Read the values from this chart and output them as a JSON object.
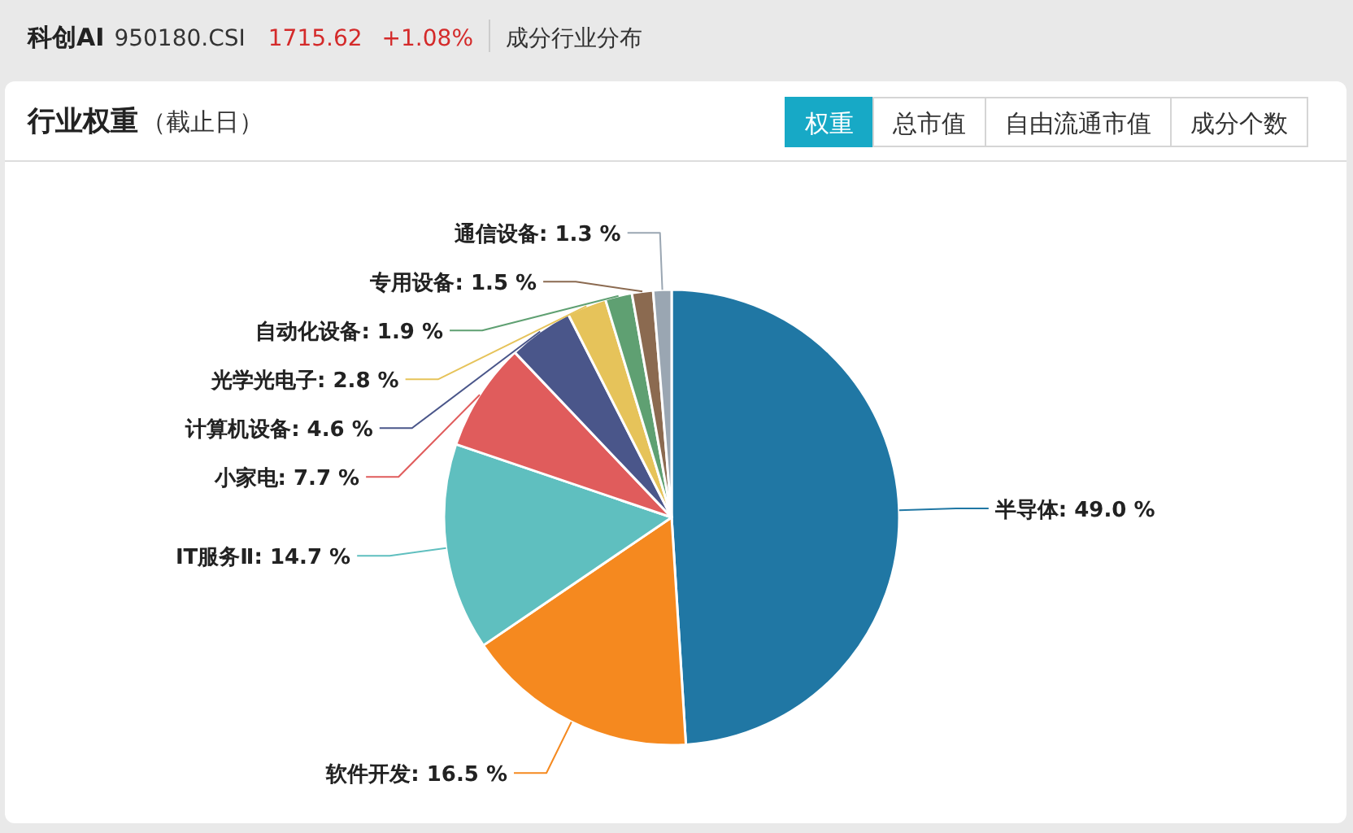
{
  "chart_data": {
    "type": "pie",
    "title": "行业权重",
    "subtitle": "（截止日）",
    "annotations": [
      "科创AI",
      "950180.CSI",
      "1715.62",
      "+1.08%",
      "成分行业分布",
      "权重",
      "总市值",
      "自由流通市值",
      "成分个数"
    ],
    "categories": [
      "半导体",
      "软件开发",
      "IT服务Ⅱ",
      "小家电",
      "计算机设备",
      "光学光电子",
      "自动化设备",
      "专用设备",
      "通信设备"
    ],
    "values": [
      49.0,
      16.5,
      14.7,
      7.7,
      4.6,
      2.8,
      1.9,
      1.5,
      1.3
    ],
    "value_labels": [
      "49.0 %",
      "16.5 %",
      "14.7 %",
      "7.7 %",
      "4.6 %",
      "2.8 %",
      "1.9 %",
      "1.5 %",
      "1.3 %"
    ],
    "colors": [
      "#2077a4",
      "#f5891f",
      "#5fbfbf",
      "#e05c5c",
      "#4a568a",
      "#e6c35a",
      "#5fa072",
      "#8b6a50",
      "#9aa6b2"
    ]
  }
}
